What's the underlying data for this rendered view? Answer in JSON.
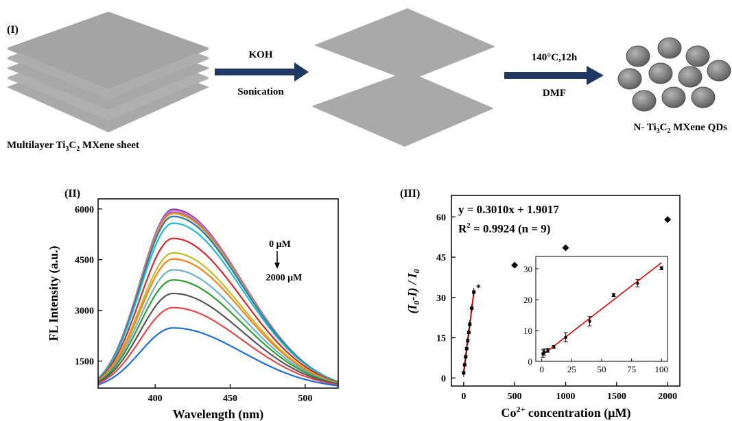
{
  "panel_i": {
    "label": "(I)",
    "step1": {
      "top": "KOH",
      "bottom": "Sonication"
    },
    "step2": {
      "top": "140°C,12h",
      "bottom": "DMF"
    },
    "caption_left": {
      "pre": "Multilayer Ti",
      "s1": "3",
      "mid": "C",
      "s2": "2",
      "post": " MXene sheet"
    },
    "caption_right": {
      "pre": "N- Ti",
      "s1": "3",
      "mid": "C",
      "s2": "2",
      "post": " MXene QDs"
    },
    "colors": {
      "sheet": "#a8a8a8",
      "sheet_edge": "#bdbdbd",
      "arrow": "#1f3864",
      "dot_dark": "#5e5e5e",
      "dot_light": "#b5b5b5"
    }
  },
  "panel_ii": {
    "label": "(II)",
    "ylabel": "FL Intensity (a.u.)",
    "xlabel": "Wavelength (nm)",
    "annot_top": "0 μM",
    "annot_bottom": "2000 μM",
    "x_ticks": [
      "400",
      "450",
      "500"
    ],
    "y_ticks": [
      "1500",
      "3000",
      "4500",
      "6000"
    ]
  },
  "panel_iii": {
    "label": "(III)",
    "equation": "y = 0.3010x + 1.9017",
    "r2_pre": "R",
    "r2_sup": "2",
    "r2_post": " = 0.9924 (n = 9)",
    "ylabel_paren": "(I",
    "ylabel_sub0": "0",
    "ylabel_mid": "-I) / I",
    "ylabel_sub1": "0",
    "xlabel_pre": "Co",
    "xlabel_sup": "2+",
    "xlabel_post": " concentration (μM)",
    "x_ticks": [
      "0",
      "500",
      "1000",
      "1500",
      "2000"
    ],
    "y_ticks": [
      "0",
      "15",
      "30",
      "45",
      "60"
    ],
    "inset_x_ticks": [
      "0",
      "25",
      "50",
      "75",
      "100"
    ],
    "inset_y_ticks": [
      "0",
      "10",
      "20",
      "30"
    ]
  },
  "chart_data": [
    {
      "type": "line",
      "panel": "II",
      "xlabel": "Wavelength (nm)",
      "ylabel": "FL Intensity (a.u.)",
      "xlim": [
        362,
        522
      ],
      "ylim": [
        700,
        6300
      ],
      "peak_x": 412,
      "series": [
        {
          "peak": 5990,
          "color": "#7b3fa0"
        },
        {
          "peak": 5950,
          "color": "#e377c2"
        },
        {
          "peak": 5900,
          "color": "#9467bd"
        },
        {
          "peak": 5860,
          "color": "#f0a500"
        },
        {
          "peak": 5780,
          "color": "#1f77b4"
        },
        {
          "peak": 5580,
          "color": "#17becf"
        },
        {
          "peak": 5130,
          "color": "#d62728"
        },
        {
          "peak": 4700,
          "color": "#bcbd22"
        },
        {
          "peak": 4520,
          "color": "#ff7f0e"
        },
        {
          "peak": 4200,
          "color": "#6baed6"
        },
        {
          "peak": 3900,
          "color": "#2ca02c"
        },
        {
          "peak": 3500,
          "color": "#555555"
        },
        {
          "peak": 3080,
          "color": "#e8474a"
        },
        {
          "peak": 2480,
          "color": "#1a6fdc"
        }
      ]
    },
    {
      "type": "scatter",
      "panel": "III",
      "xlim": [
        -120,
        2120
      ],
      "ylim": [
        -3,
        68
      ],
      "points": [
        [
          0,
          1.9
        ],
        [
          10,
          4.9
        ],
        [
          20,
          7.9
        ],
        [
          30,
          10.9
        ],
        [
          40,
          13.9
        ],
        [
          50,
          17
        ],
        [
          60,
          20
        ],
        [
          80,
          26
        ],
        [
          100,
          32
        ],
        [
          500,
          42
        ],
        [
          1000,
          48.5
        ],
        [
          2000,
          59
        ]
      ],
      "fit": {
        "slope": 0.301,
        "intercept": 1.9017,
        "x_range": [
          0,
          100
        ]
      }
    },
    {
      "type": "scatter",
      "panel": "III-inset",
      "xlim": [
        -5,
        105
      ],
      "ylim": [
        0,
        34
      ],
      "points": [
        [
          1,
          2.5
        ],
        [
          2,
          3
        ],
        [
          5,
          3.5
        ],
        [
          10,
          4.7
        ],
        [
          20,
          7.8
        ],
        [
          40,
          13
        ],
        [
          60,
          21.5
        ],
        [
          80,
          25.3
        ],
        [
          100,
          30.2
        ]
      ],
      "errors": [
        1.2,
        1.0,
        0.6,
        0.5,
        1.5,
        1.5,
        0.5,
        1.2,
        0.5
      ],
      "fit": {
        "slope": 0.301,
        "intercept": 1.9017,
        "x_range": [
          0,
          100
        ]
      }
    }
  ]
}
